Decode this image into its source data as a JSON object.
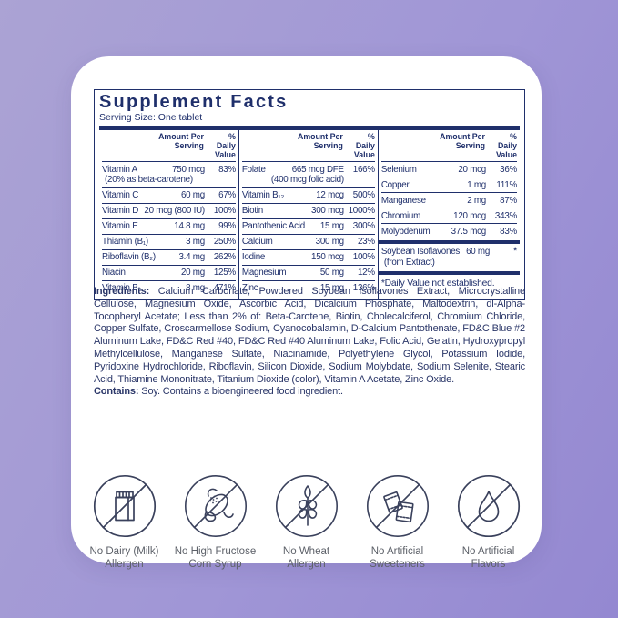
{
  "panel": {
    "title": "Supplement Facts",
    "serving_size": "Serving Size: One tablet",
    "header": {
      "amount_line1": "Amount Per",
      "amount_line2": "Serving",
      "dv_line1": "% Daily",
      "dv_line2": "Value"
    },
    "columns": [
      {
        "rows": [
          {
            "name": "Vitamin A",
            "amount": "750 mcg",
            "dv": "83%",
            "sub": "(20% as beta-carotene)",
            "sub_align": "left"
          },
          {
            "name": "Vitamin C",
            "amount": "60 mg",
            "dv": "67%"
          },
          {
            "name": "Vitamin D",
            "amount": "20 mcg (800 IU)",
            "dv": "100%"
          },
          {
            "name": "Vitamin E",
            "amount": "14.8 mg",
            "dv": "99%"
          },
          {
            "name": "Thiamin (B₁)",
            "amount": "3 mg",
            "dv": "250%"
          },
          {
            "name": "Riboflavin (B₂)",
            "amount": "3.4 mg",
            "dv": "262%"
          },
          {
            "name": "Niacin",
            "amount": "20 mg",
            "dv": "125%"
          },
          {
            "name": "Vitamin B₆",
            "amount": "8 mg",
            "dv": "471%"
          }
        ]
      },
      {
        "rows": [
          {
            "name": "Folate",
            "amount": "665 mcg DFE",
            "dv": "166%",
            "sub": "(400 mcg folic acid)",
            "sub_align": "right"
          },
          {
            "name": "Vitamin B₁₂",
            "amount": "12 mcg",
            "dv": "500%"
          },
          {
            "name": "Biotin",
            "amount": "300 mcg",
            "dv": "1000%"
          },
          {
            "name": "Pantothenic Acid",
            "amount": "15 mg",
            "dv": "300%"
          },
          {
            "name": "Calcium",
            "amount": "300 mg",
            "dv": "23%"
          },
          {
            "name": "Iodine",
            "amount": "150 mcg",
            "dv": "100%"
          },
          {
            "name": "Magnesium",
            "amount": "50 mg",
            "dv": "12%"
          },
          {
            "name": "Zinc",
            "amount": "15 mg",
            "dv": "136%"
          }
        ]
      },
      {
        "rows": [
          {
            "name": "Selenium",
            "amount": "20 mcg",
            "dv": "36%"
          },
          {
            "name": "Copper",
            "amount": "1 mg",
            "dv": "111%"
          },
          {
            "name": "Manganese",
            "amount": "2 mg",
            "dv": "87%"
          },
          {
            "name": "Chromium",
            "amount": "120 mcg",
            "dv": "343%"
          },
          {
            "name": "Molybdenum",
            "amount": "37.5 mcg",
            "dv": "83%"
          }
        ]
      }
    ],
    "special_row": {
      "name": "Soybean Isoflavones",
      "amount": "60 mg",
      "dv": "*",
      "sub": "(from Extract)"
    },
    "footnote": "*Daily Value not established."
  },
  "ingredients": {
    "label": "Ingredients:",
    "text": " Calcium Carbonate, Powdered Soybean Isoflavones Extract, Microcrystalline Cellulose, Magnesium Oxide, Ascorbic Acid, Dicalcium Phosphate, Maltodextrin, dl-Alpha-Tocopheryl Acetate; Less than 2% of: Beta-Carotene, Biotin, Cholecalciferol, Chromium Chloride, Copper Sulfate, Croscarmellose Sodium, Cyanocobalamin, D-Calcium Pantothenate, FD&C Blue #2 Aluminum Lake, FD&C Red #40, FD&C Red #40 Aluminum Lake, Folic Acid, Gelatin, Hydroxypropyl Methylcellulose, Manganese Sulfate, Niacinamide, Polyethylene Glycol, Potassium Iodide, Pyridoxine Hydrochloride, Riboflavin, Silicon Dioxide, Sodium Molybdate, Sodium Selenite, Stearic Acid, Thiamine Mononitrate, Titanium Dioxide (color), Vitamin A Acetate, Zinc Oxide.",
    "contains_label": "Contains:",
    "contains_text": " Soy.  Contains a bioengineered food ingredient."
  },
  "badges": [
    {
      "icon": "no-dairy-icon",
      "line1": "No Dairy (Milk)",
      "line2": "Allergen"
    },
    {
      "icon": "no-high-fructose-corn-syrup-icon",
      "line1": "No High Fructose",
      "line2": "Corn Syrup"
    },
    {
      "icon": "no-wheat-icon",
      "line1": "No Wheat",
      "line2": "Allergen"
    },
    {
      "icon": "no-artificial-sweeteners-icon",
      "line1": "No Artificial",
      "line2": "Sweeteners"
    },
    {
      "icon": "no-artificial-flavors-icon",
      "line1": "No Artificial",
      "line2": "Flavors"
    }
  ],
  "colors": {
    "navy": "#1f2f6b",
    "icon_stroke": "#3a415c",
    "label_gray": "#5d6169",
    "bg_light": "#aba3d4",
    "bg_dark": "#9488d1",
    "card": "#ffffff"
  }
}
